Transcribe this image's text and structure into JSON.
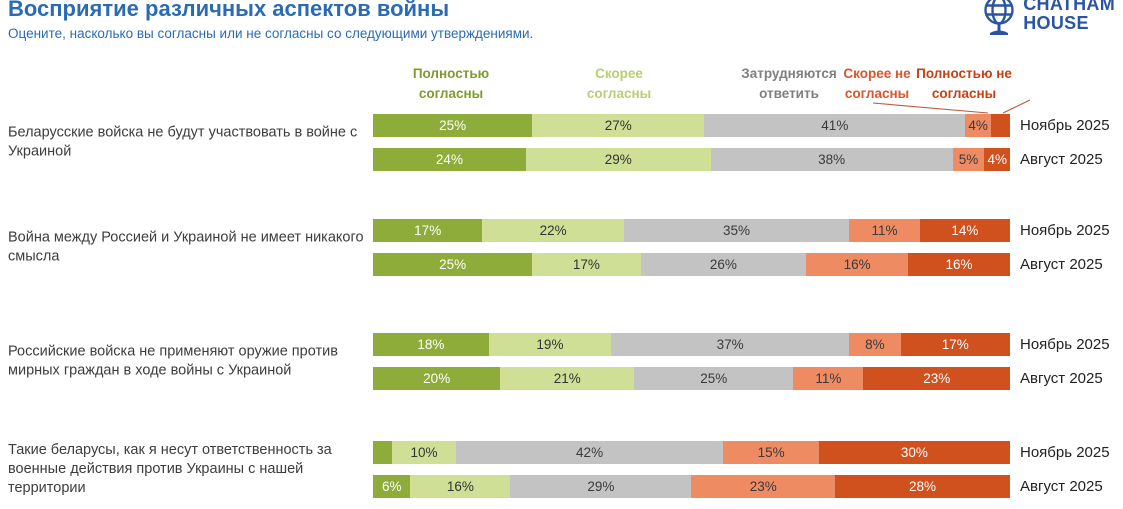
{
  "header": {
    "title": "Восприятие различных аспектов войны",
    "subtitle": "Оцените, насколько вы согласны или не согласны со следующими утверждениями.",
    "logo": {
      "line1": "CHATHAM",
      "line2": "HOUSE"
    }
  },
  "legend": {
    "items": [
      {
        "lines": [
          "Полностью",
          "согласны"
        ],
        "text_color": "#7e9b2e"
      },
      {
        "lines": [
          "Скорее",
          "согласны"
        ],
        "text_color": "#b9cd74"
      },
      {
        "lines": [
          "Затрудняются",
          "ответить"
        ],
        "text_color": "#7f7f7f"
      },
      {
        "lines": [
          "Скорее не",
          "согласны"
        ],
        "text_color": "#d9552b"
      },
      {
        "lines": [
          "Полностью не",
          "согласны"
        ],
        "text_color": "#c64112"
      }
    ]
  },
  "chart_data": {
    "type": "bar",
    "orientation": "horizontal",
    "stacked": true,
    "unit": "%",
    "series_names": [
      "Полностью согласны",
      "Скорее согласны",
      "Затрудняются ответить",
      "Скорее не согласны",
      "Полностью не согласны"
    ],
    "colors": [
      "#8dac3a",
      "#cfdf95",
      "#c3c3c3",
      "#ee8b63",
      "#d0501e"
    ],
    "label_colors": [
      "#ffffff",
      "#333333",
      "#3a3a3a",
      "#3a3a3a",
      "#ffffff"
    ],
    "groups": [
      {
        "question": "Беларусские войска не будут участвовать в войне с Украиной",
        "rows": [
          {
            "period": "Ноябрь 2025",
            "values": [
              25,
              27,
              41,
              4,
              3
            ],
            "labels": [
              "25%",
              "27%",
              "41%",
              "4%",
              ""
            ]
          },
          {
            "period": "Август 2025",
            "values": [
              24,
              29,
              38,
              5,
              4
            ],
            "labels": [
              "24%",
              "29%",
              "38%",
              "5%",
              "4%"
            ]
          }
        ]
      },
      {
        "question": "Война между Россией и Украиной не имеет никакого смысла",
        "rows": [
          {
            "period": "Ноябрь 2025",
            "values": [
              17,
              22,
              35,
              11,
              14
            ],
            "labels": [
              "17%",
              "22%",
              "35%",
              "11%",
              "14%"
            ]
          },
          {
            "period": "Август 2025",
            "values": [
              25,
              17,
              26,
              16,
              16
            ],
            "labels": [
              "25%",
              "17%",
              "26%",
              "16%",
              "16%"
            ]
          }
        ]
      },
      {
        "question": "Российские войска не применяют оружие против мирных граждан в ходе войны с Украиной",
        "rows": [
          {
            "period": "Ноябрь 2025",
            "values": [
              18,
              19,
              37,
              8,
              17
            ],
            "labels": [
              "18%",
              "19%",
              "37%",
              "8%",
              "17%"
            ]
          },
          {
            "period": "Август 2025",
            "values": [
              20,
              21,
              25,
              11,
              23
            ],
            "labels": [
              "20%",
              "21%",
              "25%",
              "11%",
              "23%"
            ]
          }
        ]
      },
      {
        "question": "Такие беларусы, как я несут ответственность за военные действия против Украины с нашей территории",
        "rows": [
          {
            "period": "Ноябрь 2025",
            "values": [
              3,
              10,
              42,
              15,
              30
            ],
            "labels": [
              "",
              "10%",
              "42%",
              "15%",
              "30%"
            ]
          },
          {
            "period": "Август 2025",
            "values": [
              6,
              16,
              29,
              23,
              28
            ],
            "labels": [
              "6%",
              "16%",
              "29%",
              "23%",
              "28%"
            ]
          }
        ]
      }
    ]
  }
}
